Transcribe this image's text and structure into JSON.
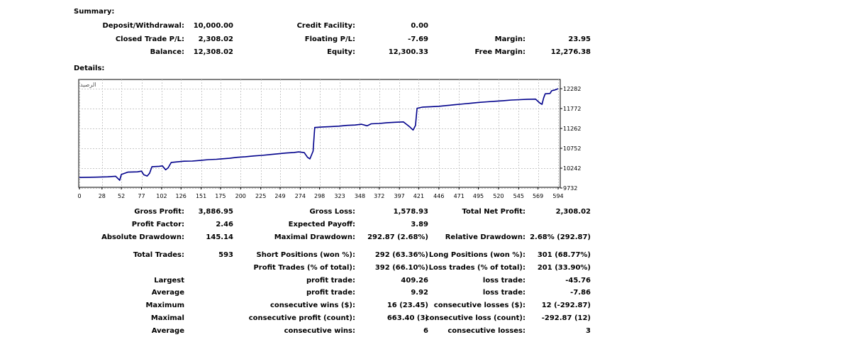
{
  "summary": {
    "heading": "Summary:",
    "rows": [
      [
        {
          "label": "Deposit/Withdrawal:",
          "value": "10,000.00"
        },
        {
          "label": "Credit Facility:",
          "value": "0.00"
        },
        {
          "label": "",
          "value": ""
        }
      ],
      [
        {
          "label": "Closed Trade P/L:",
          "value": "2,308.02"
        },
        {
          "label": "Floating P/L:",
          "value": "-7.69"
        },
        {
          "label": "Margin:",
          "value": "23.95"
        }
      ],
      [
        {
          "label": "Balance:",
          "value": "12,308.02"
        },
        {
          "label": "Equity:",
          "value": "12,300.33"
        },
        {
          "label": "Free Margin:",
          "value": "12,276.38"
        }
      ]
    ]
  },
  "details": {
    "heading": "Details:",
    "rows1": [
      [
        {
          "label": "Gross Profit:",
          "value": "3,886.95"
        },
        {
          "label": "Gross Loss:",
          "value": "1,578.93"
        },
        {
          "label": "Total Net Profit:",
          "value": "2,308.02"
        }
      ],
      [
        {
          "label": "Profit Factor:",
          "value": "2.46"
        },
        {
          "label": "Expected Payoff:",
          "value": "3.89"
        },
        {
          "label": "",
          "value": ""
        }
      ],
      [
        {
          "label": "Absolute Drawdown:",
          "value": "145.14"
        },
        {
          "label": "Maximal Drawdown:",
          "value": "292.87 (2.68%)"
        },
        {
          "label": "Relative Drawdown:",
          "value": "2.68% (292.87)"
        }
      ]
    ],
    "rows2": [
      [
        {
          "label": "Total Trades:",
          "value": "593"
        },
        {
          "label": "Short Positions (won %):",
          "value": "292 (63.36%)"
        },
        {
          "label": "Long Positions (won %):",
          "value": "301 (68.77%)"
        }
      ],
      [
        {
          "label": "",
          "value": ""
        },
        {
          "label": "Profit Trades (% of total):",
          "value": "392 (66.10%)"
        },
        {
          "label": "Loss trades (% of total):",
          "value": "201 (33.90%)"
        }
      ],
      [
        {
          "label": "Largest",
          "value": ""
        },
        {
          "label": "profit trade:",
          "value": "409.26"
        },
        {
          "label": "loss trade:",
          "value": "-45.76"
        }
      ],
      [
        {
          "label": "Average",
          "value": ""
        },
        {
          "label": "profit trade:",
          "value": "9.92"
        },
        {
          "label": "loss trade:",
          "value": "-7.86"
        }
      ],
      [
        {
          "label": "Maximum",
          "value": ""
        },
        {
          "label": "consecutive wins ($):",
          "value": "16 (23.45)"
        },
        {
          "label": "consecutive losses ($):",
          "value": "12 (-292.87)"
        }
      ],
      [
        {
          "label": "Maximal",
          "value": ""
        },
        {
          "label": "consecutive profit (count):",
          "value": "663.40 (3)"
        },
        {
          "label": "consecutive loss (count):",
          "value": "-292.87 (12)"
        }
      ],
      [
        {
          "label": "Average",
          "value": ""
        },
        {
          "label": "consecutive wins:",
          "value": "6"
        },
        {
          "label": "consecutive losses:",
          "value": "3"
        }
      ]
    ]
  },
  "chart_data": {
    "type": "line",
    "title": "الرصيد",
    "xlabel": "",
    "ylabel": "",
    "x_ticks": [
      0,
      28,
      52,
      77,
      102,
      126,
      151,
      175,
      200,
      225,
      249,
      274,
      298,
      323,
      348,
      372,
      397,
      421,
      446,
      471,
      495,
      520,
      545,
      569,
      594
    ],
    "y_ticks": [
      9732,
      10242,
      10752,
      11262,
      11772,
      12282
    ],
    "xlim": [
      0,
      594
    ],
    "ylim": [
      9732,
      12282
    ],
    "grid": true,
    "line_color": "#00008b",
    "series": [
      {
        "name": "",
        "points": [
          [
            0,
            10003
          ],
          [
            20,
            10010
          ],
          [
            35,
            10020
          ],
          [
            45,
            10035
          ],
          [
            50,
            9930
          ],
          [
            52,
            10080
          ],
          [
            60,
            10140
          ],
          [
            72,
            10148
          ],
          [
            77,
            10165
          ],
          [
            80,
            10070
          ],
          [
            84,
            10040
          ],
          [
            87,
            10110
          ],
          [
            90,
            10280
          ],
          [
            99,
            10290
          ],
          [
            103,
            10300
          ],
          [
            107,
            10200
          ],
          [
            110,
            10250
          ],
          [
            114,
            10390
          ],
          [
            124,
            10410
          ],
          [
            130,
            10420
          ],
          [
            140,
            10425
          ],
          [
            150,
            10440
          ],
          [
            160,
            10460
          ],
          [
            170,
            10470
          ],
          [
            176,
            10480
          ],
          [
            186,
            10495
          ],
          [
            196,
            10520
          ],
          [
            206,
            10535
          ],
          [
            216,
            10556
          ],
          [
            226,
            10570
          ],
          [
            236,
            10590
          ],
          [
            246,
            10610
          ],
          [
            256,
            10630
          ],
          [
            266,
            10645
          ],
          [
            272,
            10660
          ],
          [
            279,
            10640
          ],
          [
            283,
            10520
          ],
          [
            286,
            10480
          ],
          [
            290,
            10680
          ],
          [
            292,
            11285
          ],
          [
            302,
            11300
          ],
          [
            312,
            11310
          ],
          [
            322,
            11320
          ],
          [
            332,
            11340
          ],
          [
            342,
            11350
          ],
          [
            350,
            11370
          ],
          [
            357,
            11330
          ],
          [
            362,
            11380
          ],
          [
            372,
            11390
          ],
          [
            382,
            11410
          ],
          [
            392,
            11420
          ],
          [
            402,
            11430
          ],
          [
            410,
            11300
          ],
          [
            414,
            11220
          ],
          [
            417,
            11340
          ],
          [
            419,
            11780
          ],
          [
            426,
            11810
          ],
          [
            436,
            11820
          ],
          [
            446,
            11830
          ],
          [
            456,
            11850
          ],
          [
            466,
            11870
          ],
          [
            476,
            11890
          ],
          [
            486,
            11910
          ],
          [
            496,
            11930
          ],
          [
            506,
            11945
          ],
          [
            516,
            11960
          ],
          [
            526,
            11975
          ],
          [
            536,
            11990
          ],
          [
            546,
            12000
          ],
          [
            556,
            12010
          ],
          [
            566,
            12015
          ],
          [
            571,
            11920
          ],
          [
            574,
            11880
          ],
          [
            576,
            12040
          ],
          [
            578,
            12150
          ],
          [
            584,
            12160
          ],
          [
            586,
            12230
          ],
          [
            590,
            12250
          ],
          [
            594,
            12282
          ]
        ]
      }
    ]
  }
}
